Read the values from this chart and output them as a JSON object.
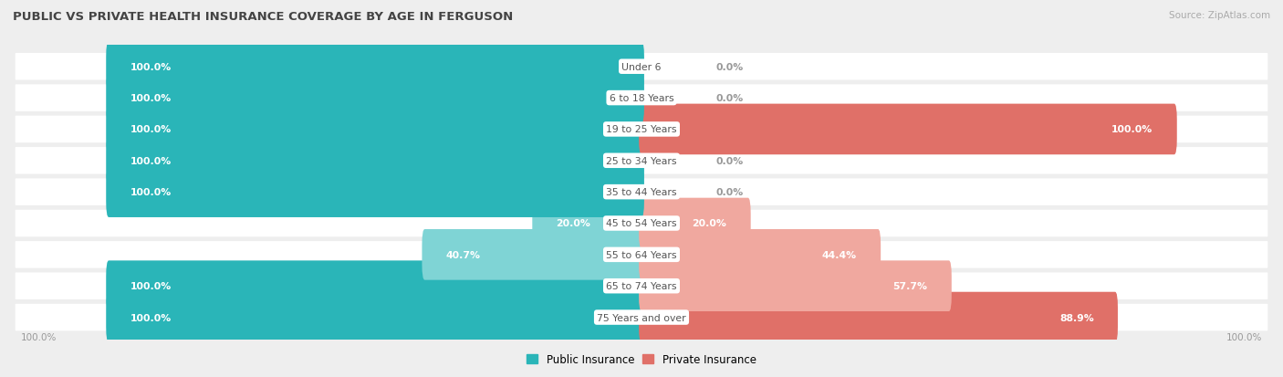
{
  "title": "PUBLIC VS PRIVATE HEALTH INSURANCE COVERAGE BY AGE IN FERGUSON",
  "source": "Source: ZipAtlas.com",
  "categories": [
    "Under 6",
    "6 to 18 Years",
    "19 to 25 Years",
    "25 to 34 Years",
    "35 to 44 Years",
    "45 to 54 Years",
    "55 to 64 Years",
    "65 to 74 Years",
    "75 Years and over"
  ],
  "public_values": [
    100.0,
    100.0,
    100.0,
    100.0,
    100.0,
    20.0,
    40.7,
    100.0,
    100.0
  ],
  "private_values": [
    0.0,
    0.0,
    100.0,
    0.0,
    0.0,
    20.0,
    44.4,
    57.7,
    88.9
  ],
  "public_color_full": "#2ab5b8",
  "public_color_partial": "#7fd4d5",
  "private_color_full": "#e07068",
  "private_color_partial": "#f0a89f",
  "bg_color": "#eeeeee",
  "row_color": "#ffffff",
  "label_white": "#ffffff",
  "label_dark": "#999999",
  "center_label_color": "#555555",
  "max_value": 100.0,
  "x_left_label": "100.0%",
  "x_right_label": "100.0%",
  "legend_public": "Public Insurance",
  "legend_private": "Private Insurance"
}
